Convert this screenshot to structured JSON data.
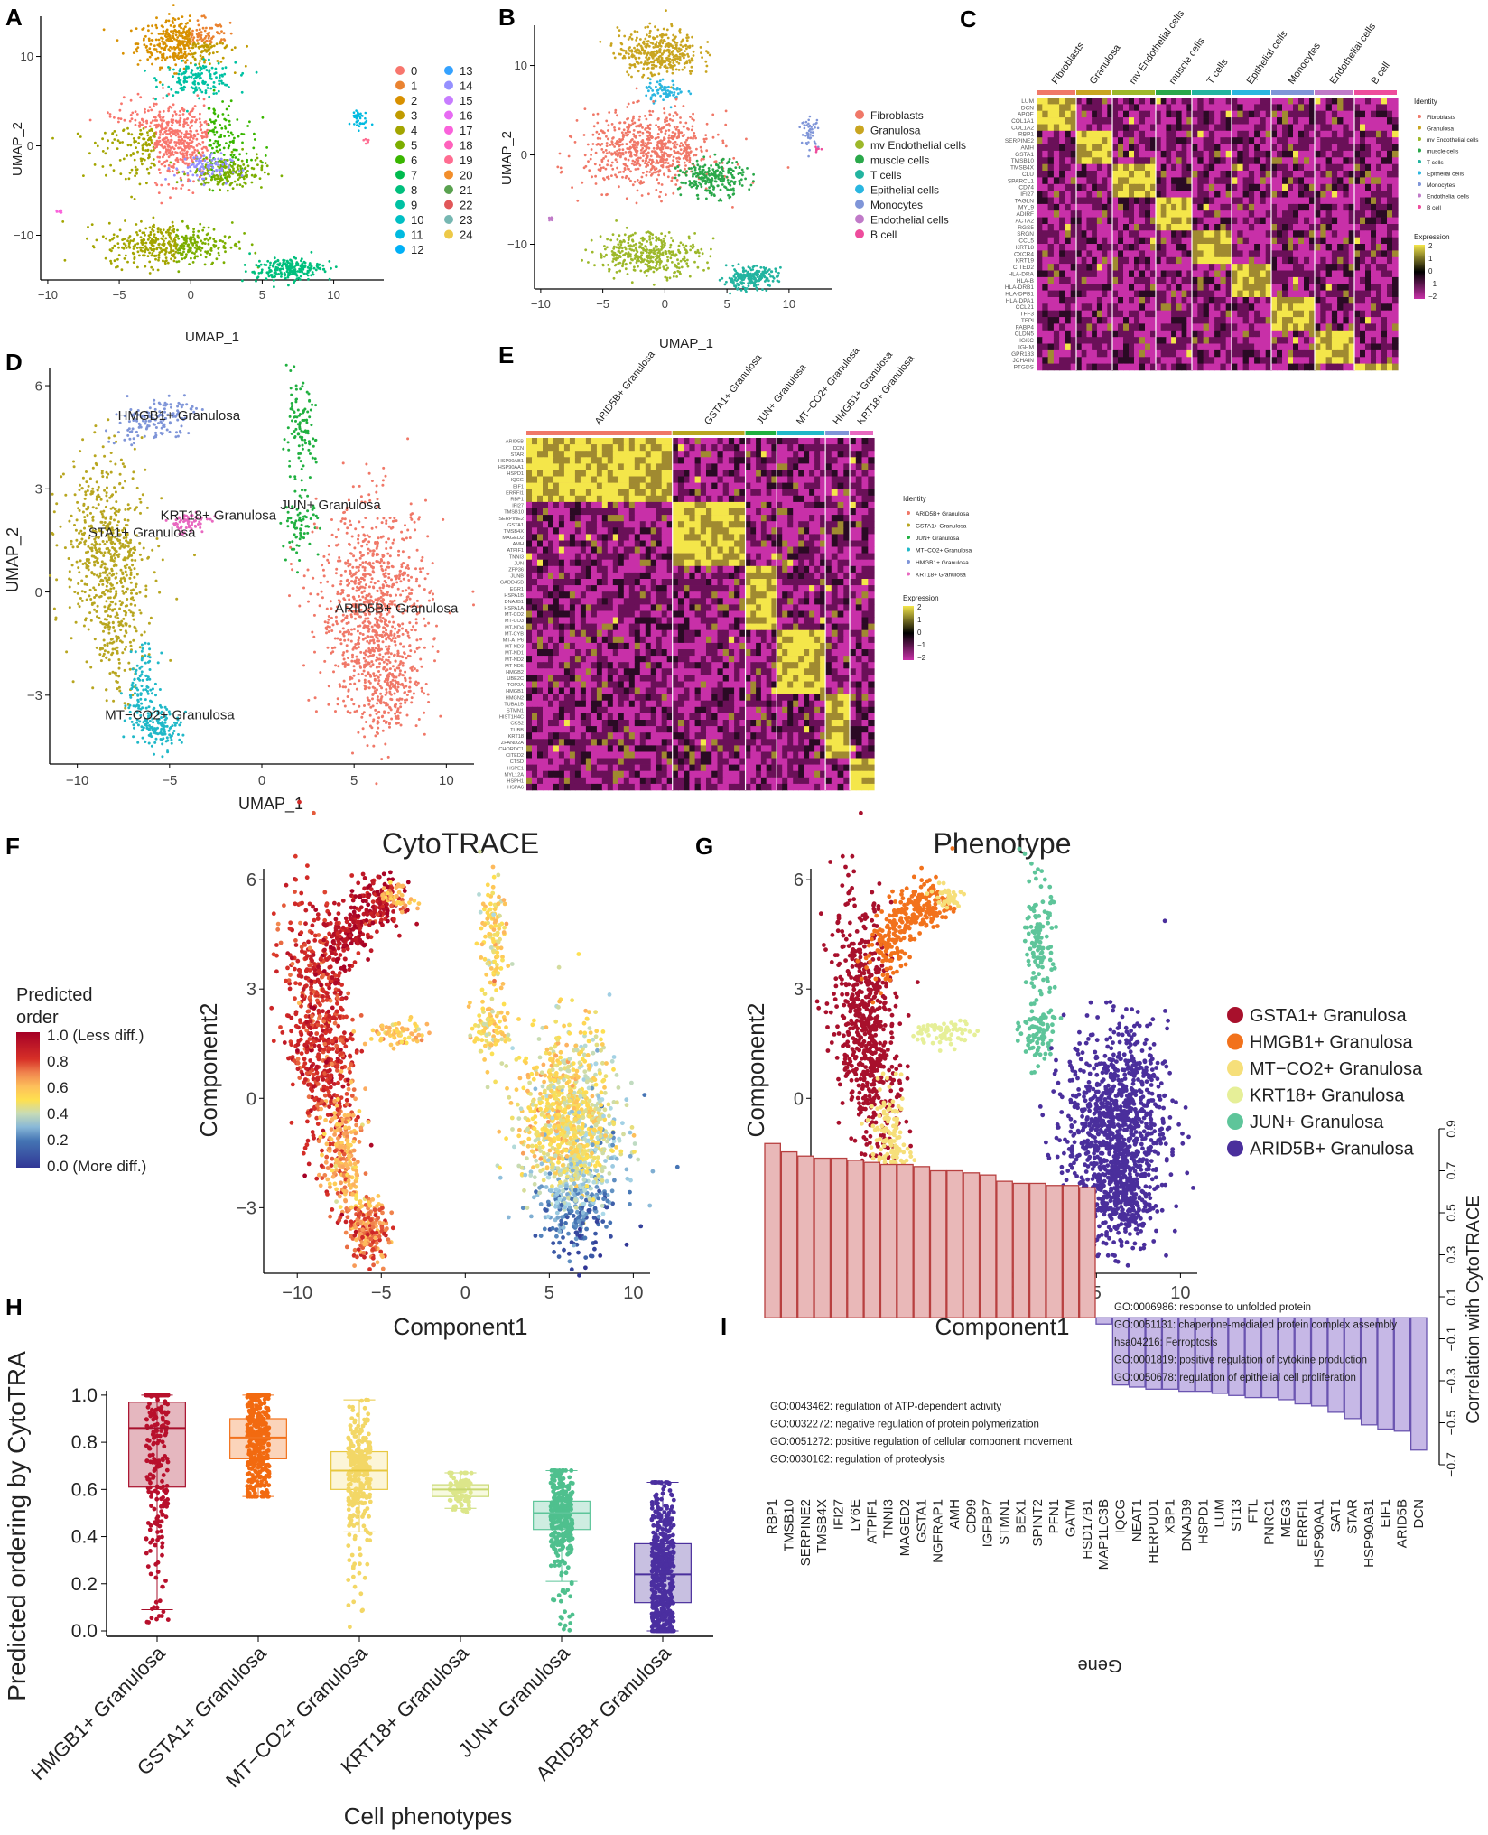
{
  "panels": {
    "A": "A",
    "B": "B",
    "C": "C",
    "D": "D",
    "E": "E",
    "F": "F",
    "G": "G",
    "H": "H",
    "I": "I"
  },
  "colors": {
    "Fibroblasts": "#f07868",
    "Granulosa": "#c9a520",
    "mv Endothelial cells": "#9db82a",
    "muscle cells": "#2aa84a",
    "T cells": "#22b4a0",
    "Epithelial cells": "#2ab6e0",
    "Monocytes": "#7f95d8",
    "Endothelial cells": "#c07ac8",
    "B cell": "#ee4c9c",
    "ARID5B": "#f07868",
    "GSTA1": "#b8a620",
    "JUN": "#20b040",
    "MTCO2": "#20b8c8",
    "HMGB1": "#7f95d8",
    "KRT18": "#e868c0",
    "G_GSTA1": "#a8102c",
    "G_HMGB1": "#f2721c",
    "G_MTCO2": "#f6df7a",
    "G_KRT18": "#e6ef98",
    "G_JUN": "#5ec59a",
    "G_ARID5B": "#4a2f9c",
    "heat_pos": "#f4e64a",
    "heat_mid": "#000000",
    "heat_neg": "#c830a8",
    "heat_low": "#6a1058"
  },
  "chart_data": [
    {
      "id": "A",
      "type": "scatter",
      "title": "",
      "xlabel": "UMAP_1",
      "ylabel": "UMAP_2",
      "xlim": [
        -10.5,
        13.5
      ],
      "ylim": [
        -15,
        14.5
      ],
      "xticks": [
        -10,
        -5,
        0,
        5,
        10
      ],
      "yticks": [
        -10,
        0,
        10
      ],
      "legend_col1": [
        "0",
        "1",
        "2",
        "3",
        "4",
        "5",
        "6",
        "7",
        "8",
        "9",
        "10",
        "11",
        "12"
      ],
      "legend_col2": [
        "13",
        "14",
        "15",
        "16",
        "17",
        "18",
        "19",
        "20",
        "21",
        "22",
        "23",
        "24"
      ],
      "legend_colors": [
        "#f8766d",
        "#ea8331",
        "#d89000",
        "#c09b00",
        "#a3a500",
        "#7cae00",
        "#39b600",
        "#00bb4e",
        "#00bf7d",
        "#00c1a3",
        "#00bfc4",
        "#00bae0",
        "#00b0f6",
        "#35a2ff",
        "#9590ff",
        "#c77cff",
        "#e76bf3",
        "#fa62db",
        "#ff62bc",
        "#ff6c91",
        "#f28e2b",
        "#59a14f",
        "#e15759",
        "#76b7b2",
        "#edc948"
      ]
    },
    {
      "id": "B",
      "type": "scatter",
      "xlabel": "UMAP_1",
      "ylabel": "UMAP_2",
      "xlim": [
        -10.5,
        13.5
      ],
      "ylim": [
        -15,
        14.5
      ],
      "xticks": [
        -10,
        -5,
        0,
        5,
        10
      ],
      "yticks": [
        -10,
        0,
        10
      ],
      "legend": [
        "Fibroblasts",
        "Granulosa",
        "mv Endothelial cells",
        "muscle cells",
        "T cells",
        "Epithelial cells",
        "Monocytes",
        "Endothelial cells",
        "B cell"
      ]
    },
    {
      "id": "C",
      "type": "heatmap",
      "columns": [
        "Fibroblasts",
        "Granulosa",
        "mv Endothelial cells",
        "muscle cells",
        "T cells",
        "Epithelial cells",
        "Monocytes",
        "Endothelial cells",
        "B cell"
      ],
      "genes": [
        "LUM",
        "DCN",
        "APOE",
        "COL1A1",
        "COL1A2",
        "RBP1",
        "SERPINE2",
        "AMH",
        "GSTA1",
        "TMSB10",
        "TMSB4X",
        "CLU",
        "SPARCL1",
        "CD74",
        "IFI27",
        "TAGLN",
        "MYL9",
        "ADIRF",
        "ACTA2",
        "RGS5",
        "SRGN",
        "CCL5",
        "KRT18",
        "CXCR4",
        "KRT19",
        "CITED2",
        "HLA-DRA",
        "HLA-B",
        "HLA-DRB1",
        "HLA-DPB1",
        "HLA-DPA1",
        "CCL21",
        "TFF3",
        "TFPI",
        "FABP4",
        "CLDN5",
        "IGKC",
        "IGHM",
        "GPR183",
        "JCHAIN",
        "PTGDS"
      ],
      "legend_title": "Identity",
      "scale_title": "Expression",
      "scale_ticks": [
        "2",
        "1",
        "0",
        "−1",
        "−2"
      ]
    },
    {
      "id": "D",
      "type": "scatter",
      "xlabel": "UMAP_1",
      "ylabel": "UMAP_2",
      "xlim": [
        -11.5,
        11.5
      ],
      "ylim": [
        -5,
        6.5
      ],
      "xticks": [
        -10,
        -5,
        0,
        5,
        10
      ],
      "yticks": [
        -3,
        0,
        3,
        6
      ],
      "labels": [
        "HMGB1+ Granulosa",
        "JUN+ Granulosa",
        "KRT18+ Granulosa",
        "STA1+ Granulosa",
        "ARID5B+ Granulosa",
        "MT−CO2+ Granulosa"
      ]
    },
    {
      "id": "E",
      "type": "heatmap",
      "columns": [
        "ARID5B+ Granulosa",
        "GSTA1+ Granulosa",
        "JUN+ Granulosa",
        "MT−CO2+ Granulosa",
        "HMGB1+ Granulosa",
        "KRT18+ Granulosa"
      ],
      "genes": [
        "ARID5B",
        "DCN",
        "STAR",
        "HSP90AB1",
        "HSP90AA1",
        "HSPD1",
        "IQCG",
        "EIF1",
        "ERRFI1",
        "RBP1",
        "IFI27",
        "TMSB10",
        "SERPINE2",
        "GSTA1",
        "TMSB4X",
        "MAGED2",
        "AMH",
        "ATPIF1",
        "TNNI3",
        "JUN",
        "ZFP36",
        "JUNB",
        "GADD45B",
        "EGR1",
        "HSPA1B",
        "DNAJB1",
        "HSPA1A",
        "MT-CO2",
        "MT-CO3",
        "MT-ND4",
        "MT-CYB",
        "MT-ATP6",
        "MT-ND3",
        "MT-ND1",
        "MT-ND2",
        "MT-ND5",
        "HMGB2",
        "UBE2C",
        "TOP2A",
        "HMGB1",
        "HMGN2",
        "TUBA1B",
        "STMN1",
        "HIST1H4C",
        "CKS2",
        "TUBB",
        "KRT18",
        "ZFAND2A",
        "CHORDC1",
        "CITED2",
        "CTSD",
        "HSPE1",
        "MYL12A",
        "HSPH1",
        "HSPA6"
      ],
      "legend_title": "Identity",
      "legend": [
        "ARID5B+ Granulosa",
        "GSTA1+ Granulosa",
        "JUN+ Granulosa",
        "MT−CO2+ Granulosa",
        "HMGB1+ Granulosa",
        "KRT18+ Granulosa"
      ],
      "scale_title": "Expression",
      "scale_ticks": [
        "2",
        "1",
        "0",
        "−1",
        "−2"
      ]
    },
    {
      "id": "F",
      "type": "scatter",
      "title": "CytoTRACE",
      "xlabel": "Component1",
      "ylabel": "Component2",
      "xlim": [
        -12,
        11
      ],
      "ylim": [
        -4.8,
        6.3
      ],
      "xticks": [
        -10,
        -5,
        0,
        5,
        10
      ],
      "yticks": [
        -3,
        0,
        3,
        6
      ],
      "legend_title": [
        "Predicted",
        "order"
      ],
      "scale_labels": [
        "1.0 (Less diff.)",
        "0.8",
        "0.6",
        "0.4",
        "0.2",
        "0.0 (More diff.)"
      ]
    },
    {
      "id": "G",
      "type": "scatter",
      "title": "Phenotype",
      "xlabel": "Component1",
      "ylabel": "Component2",
      "xlim": [
        -12,
        11
      ],
      "ylim": [
        -4.8,
        6.3
      ],
      "xticks": [
        -10,
        -5,
        0,
        5,
        10
      ],
      "yticks": [
        -3,
        0,
        3,
        6
      ],
      "legend": [
        "GSTA1+ Granulosa",
        "HMGB1+ Granulosa",
        "MT−CO2+ Granulosa",
        "KRT18+ Granulosa",
        "JUN+ Granulosa",
        "ARID5B+ Granulosa"
      ]
    },
    {
      "id": "H",
      "type": "box",
      "xlabel": "Cell phenotypes",
      "ylabel": "Predicted ordering by CytoTRA",
      "ylim": [
        0,
        1.0
      ],
      "yticks": [
        "0.0",
        "0.2",
        "0.4",
        "0.6",
        "0.8",
        "1.0"
      ],
      "categories": [
        "HMGB1+ Granulosa",
        "GSTA1+ Granulosa",
        "MT−CO2+ Granulosa",
        "KRT18+ Granulosa",
        "JUN+ Granulosa",
        "ARID5B+ Granulosa"
      ],
      "boxes": [
        {
          "q1": 0.61,
          "median": 0.86,
          "q3": 0.97,
          "wlo": 0.09,
          "whi": 1.0,
          "min": 0.02
        },
        {
          "q1": 0.73,
          "median": 0.82,
          "q3": 0.9,
          "wlo": 0.57,
          "whi": 1.0,
          "min": 0.57
        },
        {
          "q1": 0.6,
          "median": 0.68,
          "q3": 0.76,
          "wlo": 0.42,
          "whi": 0.98,
          "min": 0.0
        },
        {
          "q1": 0.57,
          "median": 0.6,
          "q3": 0.62,
          "wlo": 0.52,
          "whi": 0.67,
          "min": 0.5
        },
        {
          "q1": 0.43,
          "median": 0.5,
          "q3": 0.55,
          "wlo": 0.21,
          "whi": 0.68,
          "min": 0.0
        },
        {
          "q1": 0.12,
          "median": 0.24,
          "q3": 0.37,
          "wlo": 0.0,
          "whi": 0.63,
          "min": 0.0
        }
      ]
    },
    {
      "id": "I",
      "type": "bar",
      "xlabel": "Gene",
      "ylabel": "Correlation with CytoTRACE",
      "ylim": [
        -0.75,
        0.95
      ],
      "yticks": [
        "0.9",
        "0.7",
        "0.5",
        "0.3",
        "0.1",
        "−0.1",
        "−0.3",
        "−0.5",
        "−0.7"
      ],
      "categories": [
        "RBP1",
        "TMSB10",
        "SERPINE2",
        "TMSB4X",
        "IFI27",
        "LY6E",
        "ATPIF1",
        "TNNI3",
        "MAGED2",
        "GSTA1",
        "NGFRAP1",
        "AMH",
        "CD99",
        "IGFBP7",
        "STMN1",
        "BEX1",
        "SPINT2",
        "PFN1",
        "GATM",
        "HSD17B1",
        "MAP1LC3B",
        "IQCG",
        "NEAT1",
        "HERPUD1",
        "XBP1",
        "DNAJB9",
        "HSPD1",
        "LUM",
        "ST13",
        "FTL",
        "PNRC1",
        "MEG3",
        "ERRFI1",
        "HSP90AA1",
        "SAT1",
        "STAR",
        "HSP90AB1",
        "EIF1",
        "ARID5B",
        "DCN"
      ],
      "values": [
        0.83,
        0.79,
        0.77,
        0.76,
        0.76,
        0.75,
        0.74,
        0.73,
        0.73,
        0.72,
        0.7,
        0.7,
        0.69,
        0.68,
        0.65,
        0.64,
        0.64,
        0.63,
        0.63,
        0.62,
        -0.03,
        -0.32,
        -0.33,
        -0.34,
        -0.34,
        -0.35,
        -0.35,
        -0.36,
        -0.37,
        -0.38,
        -0.38,
        -0.39,
        -0.41,
        -0.42,
        -0.45,
        -0.48,
        -0.51,
        -0.53,
        -0.54,
        -0.63
      ],
      "go_pos": [
        "GO:0006986: response to unfolded protein",
        "GO:0051131: chaperone-mediated protein complex assembly",
        "hsa04216: Ferroptosis",
        "GO:0001819: positive regulation of cytokine production",
        "GO:0050678: regulation of epithelial cell proliferation"
      ],
      "go_neg": [
        "GO:0043462: regulation of ATP-dependent activity",
        "GO:0032272: negative regulation of protein polymerization",
        "GO:0051272: positive regulation of cellular component movement",
        "GO:0030162: regulation of proteolysis"
      ]
    }
  ]
}
